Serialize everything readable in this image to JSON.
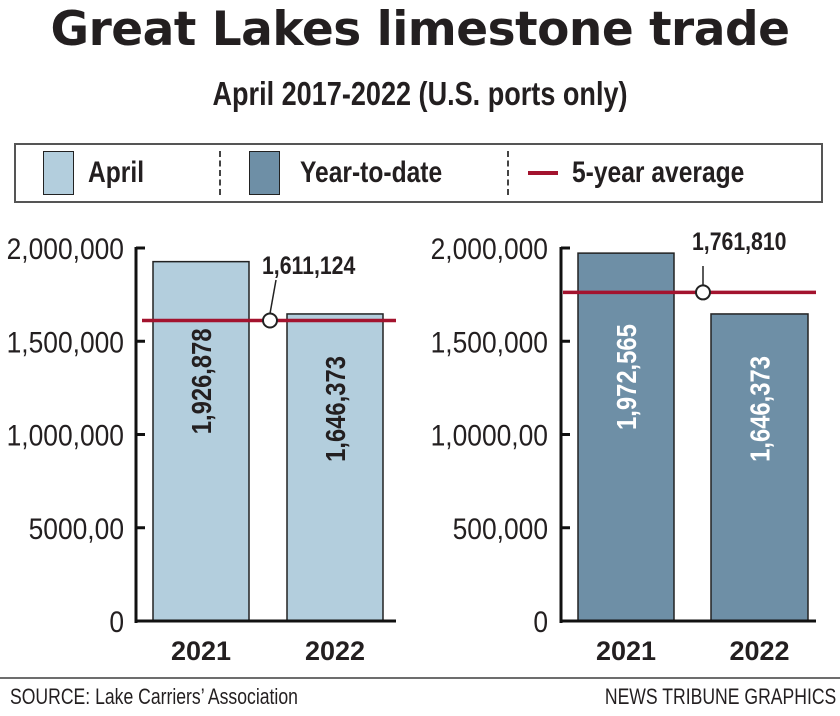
{
  "header": {
    "title": "Great Lakes limestone trade",
    "subtitle": "April 2017-2022 (U.S. ports only)"
  },
  "legend": {
    "items": [
      {
        "label": "April",
        "type": "swatch",
        "color": "#b3cedd"
      },
      {
        "label": "Year-to-date",
        "type": "swatch",
        "color": "#6e8fa6"
      },
      {
        "label": "5-year average",
        "type": "line",
        "color": "#a3132e"
      }
    ]
  },
  "colors": {
    "april": "#b3cedd",
    "ytd": "#6e8fa6",
    "average": "#a3132e",
    "axis": "#111111",
    "text": "#231f20"
  },
  "footer": {
    "source": "SOURCE: Lake Carriers’ Association",
    "credit": "NEWS TRIBUNE GRAPHICS"
  },
  "chart_data": [
    {
      "type": "bar",
      "name": "April",
      "categories": [
        "2021",
        "2022"
      ],
      "values": [
        1926878,
        1646373
      ],
      "value_labels": [
        "1,926,878",
        "1,646,373"
      ],
      "reference_line": {
        "name": "5-year average",
        "value": 1611124,
        "label": "1,611,124"
      },
      "ytick_labels": [
        "2,000,000",
        "1,500,000",
        "1,000,000",
        "5000,00",
        "0"
      ],
      "yticks": [
        2000000,
        1500000,
        1000000,
        500000,
        0
      ],
      "ylim": [
        0,
        2000000
      ],
      "xlabel": "",
      "ylabel": "",
      "grid": false,
      "bar_color": "#b3cedd",
      "label_color": "#231f20"
    },
    {
      "type": "bar",
      "name": "Year-to-date",
      "categories": [
        "2021",
        "2022"
      ],
      "values": [
        1972565,
        1646373
      ],
      "value_labels": [
        "1,972,565",
        "1,646,373"
      ],
      "reference_line": {
        "name": "5-year average",
        "value": 1761810,
        "label": "1,761,810"
      },
      "ytick_labels": [
        "2,000,000",
        "1,500,000",
        "1,0000,00",
        "500,000",
        "0"
      ],
      "yticks": [
        2000000,
        1500000,
        1000000,
        500000,
        0
      ],
      "ylim": [
        0,
        2000000
      ],
      "xlabel": "",
      "ylabel": "",
      "grid": false,
      "bar_color": "#6e8fa6",
      "label_color": "#ffffff"
    }
  ]
}
